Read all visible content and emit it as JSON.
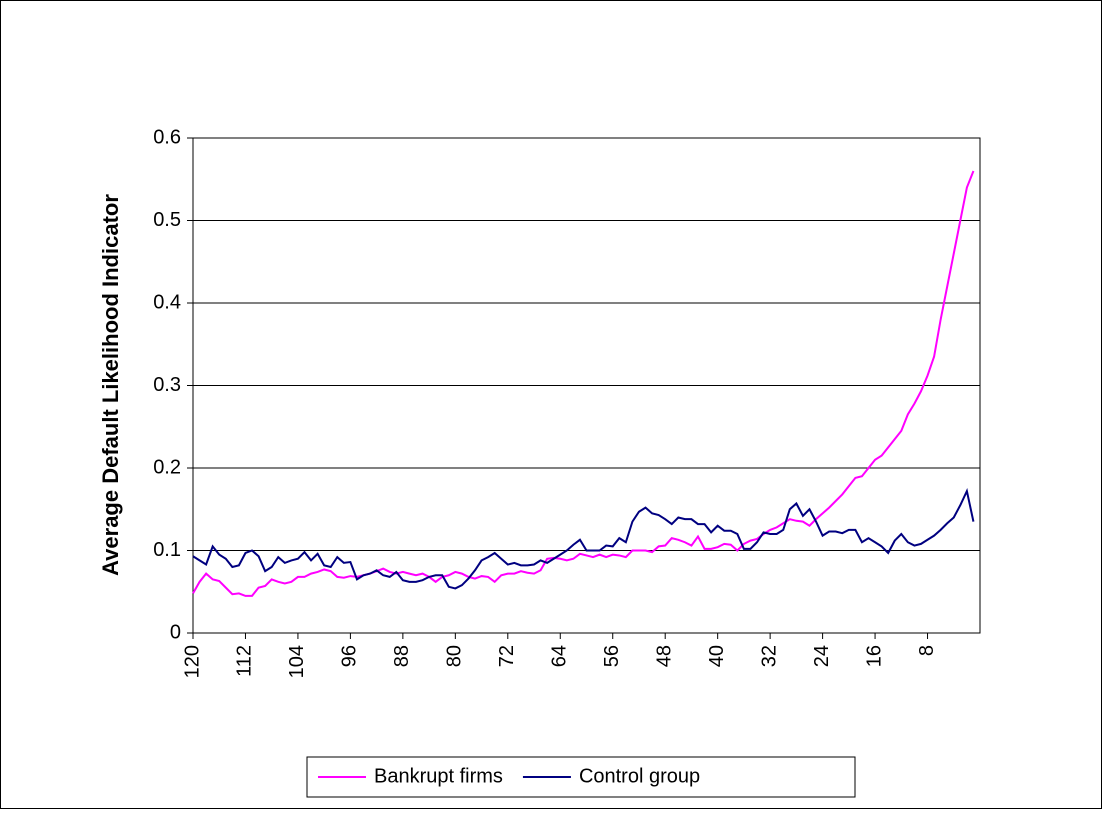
{
  "chart_data": {
    "type": "line",
    "y_label": "Average Default Likelihood Indicator",
    "x": [
      120,
      119,
      118,
      117,
      116,
      115,
      114,
      113,
      112,
      111,
      110,
      109,
      108,
      107,
      106,
      105,
      104,
      103,
      102,
      101,
      100,
      99,
      98,
      97,
      96,
      95,
      94,
      93,
      92,
      91,
      90,
      89,
      88,
      87,
      86,
      85,
      84,
      83,
      82,
      81,
      80,
      79,
      78,
      77,
      76,
      75,
      74,
      73,
      72,
      71,
      70,
      69,
      68,
      67,
      66,
      65,
      64,
      63,
      62,
      61,
      60,
      59,
      58,
      57,
      56,
      55,
      54,
      53,
      52,
      51,
      50,
      49,
      48,
      47,
      46,
      45,
      44,
      43,
      42,
      41,
      40,
      39,
      38,
      37,
      36,
      35,
      34,
      33,
      32,
      31,
      30,
      29,
      28,
      27,
      26,
      25,
      24,
      23,
      22,
      21,
      20,
      19,
      18,
      17,
      16,
      15,
      14,
      13,
      12,
      11,
      10,
      9,
      8,
      7,
      6,
      5,
      4,
      3,
      2,
      1
    ],
    "series": [
      {
        "name": "Bankrupt firms",
        "color": "#ff00ff",
        "values": [
          0.048,
          0.062,
          0.072,
          0.065,
          0.063,
          0.055,
          0.047,
          0.048,
          0.045,
          0.045,
          0.055,
          0.057,
          0.065,
          0.062,
          0.06,
          0.062,
          0.068,
          0.068,
          0.072,
          0.074,
          0.077,
          0.075,
          0.068,
          0.067,
          0.069,
          0.068,
          0.07,
          0.072,
          0.075,
          0.078,
          0.074,
          0.072,
          0.074,
          0.072,
          0.07,
          0.072,
          0.068,
          0.062,
          0.068,
          0.07,
          0.074,
          0.072,
          0.068,
          0.066,
          0.069,
          0.068,
          0.062,
          0.07,
          0.072,
          0.072,
          0.075,
          0.073,
          0.072,
          0.076,
          0.09,
          0.091,
          0.09,
          0.088,
          0.09,
          0.096,
          0.094,
          0.092,
          0.095,
          0.092,
          0.095,
          0.094,
          0.092,
          0.1,
          0.1,
          0.1,
          0.098,
          0.105,
          0.106,
          0.115,
          0.113,
          0.11,
          0.106,
          0.117,
          0.102,
          0.102,
          0.104,
          0.108,
          0.107,
          0.1,
          0.108,
          0.112,
          0.114,
          0.12,
          0.125,
          0.128,
          0.133,
          0.138,
          0.136,
          0.135,
          0.13,
          0.138,
          0.145,
          0.152,
          0.16,
          0.168,
          0.178,
          0.188,
          0.19,
          0.2,
          0.21,
          0.215,
          0.225,
          0.235,
          0.245,
          0.265,
          0.278,
          0.293,
          0.312,
          0.335,
          0.38,
          0.42,
          0.46,
          0.5,
          0.54,
          0.56
        ]
      },
      {
        "name": "Control group",
        "color": "#000080",
        "values": [
          0.093,
          0.088,
          0.083,
          0.105,
          0.095,
          0.09,
          0.08,
          0.082,
          0.097,
          0.1,
          0.093,
          0.075,
          0.08,
          0.092,
          0.085,
          0.088,
          0.09,
          0.098,
          0.088,
          0.096,
          0.082,
          0.08,
          0.092,
          0.085,
          0.086,
          0.065,
          0.07,
          0.072,
          0.076,
          0.07,
          0.068,
          0.074,
          0.064,
          0.062,
          0.062,
          0.064,
          0.068,
          0.07,
          0.07,
          0.056,
          0.054,
          0.058,
          0.066,
          0.076,
          0.088,
          0.092,
          0.097,
          0.09,
          0.083,
          0.085,
          0.082,
          0.082,
          0.083,
          0.088,
          0.085,
          0.09,
          0.095,
          0.1,
          0.107,
          0.113,
          0.1,
          0.1,
          0.1,
          0.106,
          0.105,
          0.115,
          0.11,
          0.135,
          0.147,
          0.152,
          0.145,
          0.143,
          0.138,
          0.132,
          0.14,
          0.138,
          0.138,
          0.132,
          0.132,
          0.122,
          0.13,
          0.124,
          0.124,
          0.12,
          0.102,
          0.102,
          0.11,
          0.122,
          0.12,
          0.12,
          0.125,
          0.15,
          0.157,
          0.142,
          0.15,
          0.135,
          0.118,
          0.123,
          0.123,
          0.121,
          0.125,
          0.125,
          0.11,
          0.115,
          0.11,
          0.105,
          0.097,
          0.112,
          0.12,
          0.11,
          0.106,
          0.108,
          0.113,
          0.118,
          0.125,
          0.133,
          0.14,
          0.155,
          0.172,
          0.135
        ]
      }
    ],
    "xlim": [
      120,
      0
    ],
    "xticks": [
      120,
      112,
      104,
      96,
      88,
      80,
      72,
      64,
      56,
      48,
      40,
      32,
      24,
      16,
      8
    ],
    "ylim": [
      0,
      0.6
    ],
    "yticks": [
      0,
      0.1,
      0.2,
      0.3,
      0.4,
      0.5,
      0.6
    ],
    "grid": true,
    "legend": "bottom"
  }
}
